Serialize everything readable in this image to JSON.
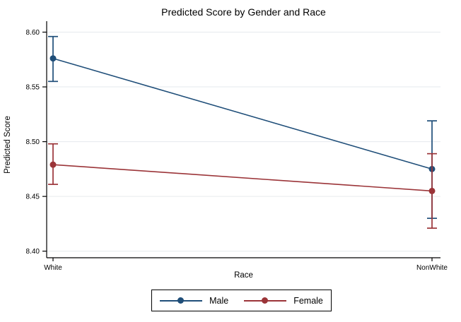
{
  "chart_data": {
    "type": "line",
    "title": "Predicted Score by Gender and Race",
    "xlabel": "Race",
    "ylabel": "Predicted Score",
    "categories": [
      "White",
      "NonWhite"
    ],
    "yticks": [
      8.4,
      8.45,
      8.5,
      8.55,
      8.6
    ],
    "ytick_labels": [
      "8.40",
      "8.45",
      "8.50",
      "8.55",
      "8.60"
    ],
    "ylim": [
      8.394,
      8.61
    ],
    "grid": true,
    "grid_color": "#e6eaee",
    "axis_color": "#000000",
    "background_color": "#ffffff",
    "error_bars": true,
    "legend_position": "bottom-center",
    "series": [
      {
        "name": "Male",
        "color": "#1f4e79",
        "values": [
          8.576,
          8.475
        ],
        "ci_low": [
          8.555,
          8.43
        ],
        "ci_high": [
          8.596,
          8.519
        ]
      },
      {
        "name": "Female",
        "color": "#9b3438",
        "values": [
          8.479,
          8.455
        ],
        "ci_low": [
          8.461,
          8.421
        ],
        "ci_high": [
          8.498,
          8.489
        ]
      }
    ]
  }
}
